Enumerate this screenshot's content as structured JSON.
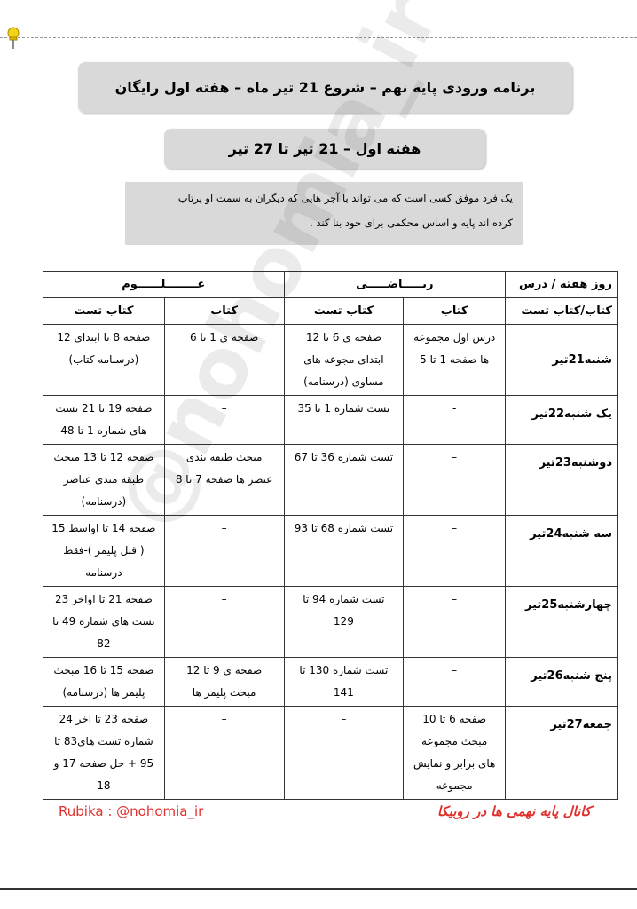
{
  "header": {
    "title": "برنامه ورودی پایه نهم – شروع 21 تیر ماه – هفته اول رایگان",
    "week_title": "هفته اول – 21 تیر تا 27 تیر",
    "quote": "یک فرد موفق کسی است که می تواند با آجر هایی که دیگران به سمت او پرتاب\nکرده اند پایه و اساس محکمی برای خود بنا کند ."
  },
  "table": {
    "corner_top": "روز هفته / درس",
    "corner_bottom": "کتاب/کتاب تست",
    "subject_math": "ریـــــاضـــــی",
    "subject_science": "عــــــــلــــــوم",
    "col_book": "کتاب",
    "col_test": "کتاب تست",
    "rows": [
      {
        "day": "شنبه21تیر",
        "math_book": "درس اول مجموعه\nها صفحه 1 تا 5",
        "math_test": "صفحه ی 6 تا 12\nابتدای مجوعه های\nمساوی (درسنامه)",
        "sci_book": "صفحه ی 1 تا 6",
        "sci_test": "صفحه 8 تا ابتدای 12\n(درسنامه کتاب)"
      },
      {
        "day": "یک شنبه22تیر",
        "math_book": "-",
        "math_test": "تست شماره 1 تا 35",
        "sci_book": "–",
        "sci_test": "صفحه 19 تا 21 تست\nهای شماره 1 تا 48"
      },
      {
        "day": "دوشنبه23تیر",
        "math_book": "–",
        "math_test": "تست شماره 36 تا 67",
        "sci_book": "مبحث طبقه بندی\nعنصر ها صفحه 7 تا 8",
        "sci_test": "صفحه 12 تا 13 مبحث\nطبقه مندی عناصر\n(درسنامه)"
      },
      {
        "day": "سه شنبه24تیر",
        "math_book": "–",
        "math_test": "تست شماره 68 تا 93",
        "sci_book": "–",
        "sci_test": "صفحه 14 تا اواسط 15\n( قبل پلیمر )-فقط\nدرسنامه"
      },
      {
        "day": "چهارشنبه25تیر",
        "math_book": "–",
        "math_test": "تست شماره 94 تا\n129",
        "sci_book": "–",
        "sci_test": "صفحه 21 تا اواخر 23\nتست های شماره 49 تا\n82"
      },
      {
        "day": "پنج شنبه26تیر",
        "math_book": "–",
        "math_test": "تست شماره 130 تا\n141",
        "sci_book": "صفحه ی 9 تا 12\nمبحث پلیمر ها",
        "sci_test": "صفحه 15 تا 16 مبحث\nپلیمر ها (درسنامه)"
      },
      {
        "day": "جمعه27تیر",
        "math_book": "صفحه 6 تا 10\nمبحث مجموعه\nهای برابر و نمایش\nمجموعه",
        "math_test": "–",
        "sci_book": "–",
        "sci_test": "صفحه 23 تا اخر 24\nشماره تست های83 تا\n95 + حل صفحه 17 و\n18"
      }
    ]
  },
  "watermark": "@nohomia_ir",
  "footer": {
    "left": "Rubika : @nohomia_ir",
    "right": "کانال پایه نهمی ها در روبیکا"
  },
  "colors": {
    "accent_red": "#e0302c",
    "box_gray": "#d9d9d9"
  },
  "icons": {
    "pin": "pushpin-icon"
  }
}
